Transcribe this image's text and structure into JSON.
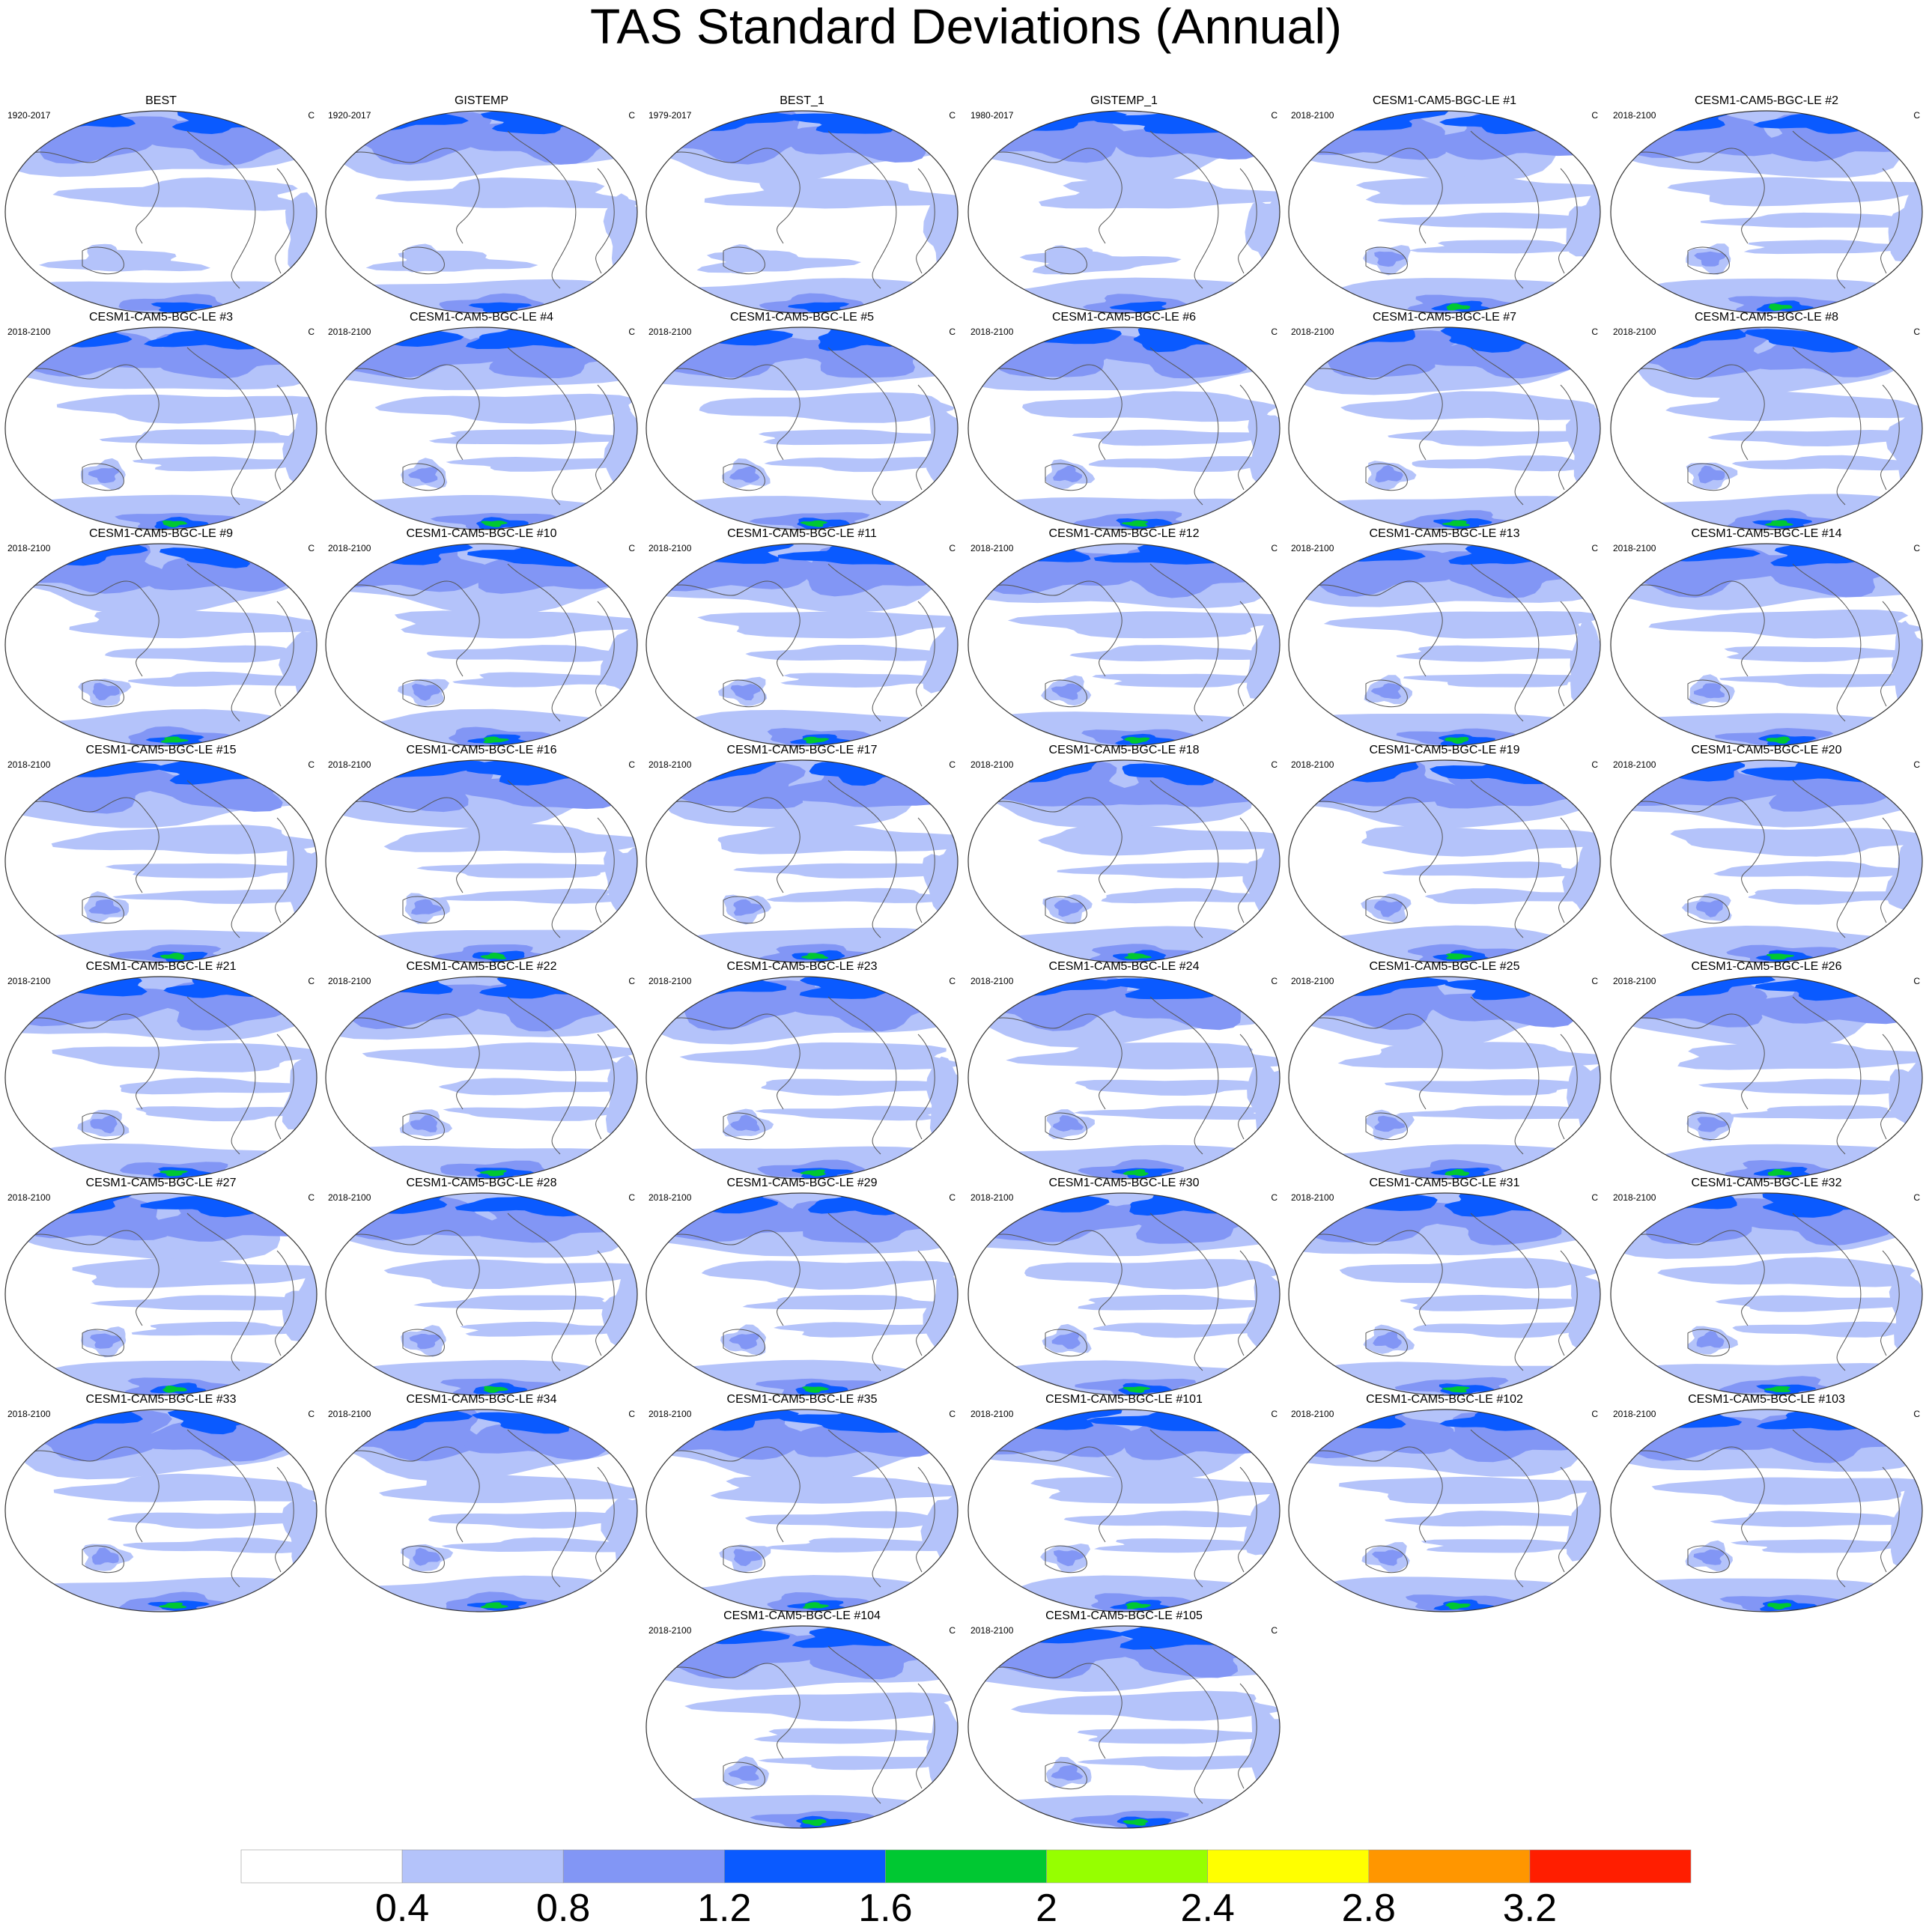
{
  "title": "TAS Standard Deviations (Annual)",
  "chart_data": {
    "type": "heatmap",
    "description_type": "panel grid of global contour maps",
    "unit_label": "C",
    "panels": [
      {
        "title": "BEST",
        "period": "1920-2017"
      },
      {
        "title": "GISTEMP",
        "period": "1920-2017"
      },
      {
        "title": "BEST_1",
        "period": "1979-2017"
      },
      {
        "title": "GISTEMP_1",
        "period": "1980-2017"
      },
      {
        "title": "CESM1-CAM5-BGC-LE #1",
        "period": "2018-2100"
      },
      {
        "title": "CESM1-CAM5-BGC-LE #2",
        "period": "2018-2100"
      },
      {
        "title": "CESM1-CAM5-BGC-LE #3",
        "period": "2018-2100"
      },
      {
        "title": "CESM1-CAM5-BGC-LE #4",
        "period": "2018-2100"
      },
      {
        "title": "CESM1-CAM5-BGC-LE #5",
        "period": "2018-2100"
      },
      {
        "title": "CESM1-CAM5-BGC-LE #6",
        "period": "2018-2100"
      },
      {
        "title": "CESM1-CAM5-BGC-LE #7",
        "period": "2018-2100"
      },
      {
        "title": "CESM1-CAM5-BGC-LE #8",
        "period": "2018-2100"
      },
      {
        "title": "CESM1-CAM5-BGC-LE #9",
        "period": "2018-2100"
      },
      {
        "title": "CESM1-CAM5-BGC-LE #10",
        "period": "2018-2100"
      },
      {
        "title": "CESM1-CAM5-BGC-LE #11",
        "period": "2018-2100"
      },
      {
        "title": "CESM1-CAM5-BGC-LE #12",
        "period": "2018-2100"
      },
      {
        "title": "CESM1-CAM5-BGC-LE #13",
        "period": "2018-2100"
      },
      {
        "title": "CESM1-CAM5-BGC-LE #14",
        "period": "2018-2100"
      },
      {
        "title": "CESM1-CAM5-BGC-LE #15",
        "period": "2018-2100"
      },
      {
        "title": "CESM1-CAM5-BGC-LE #16",
        "period": "2018-2100"
      },
      {
        "title": "CESM1-CAM5-BGC-LE #17",
        "period": "2018-2100"
      },
      {
        "title": "CESM1-CAM5-BGC-LE #18",
        "period": "2018-2100"
      },
      {
        "title": "CESM1-CAM5-BGC-LE #19",
        "period": "2018-2100"
      },
      {
        "title": "CESM1-CAM5-BGC-LE #20",
        "period": "2018-2100"
      },
      {
        "title": "CESM1-CAM5-BGC-LE #21",
        "period": "2018-2100"
      },
      {
        "title": "CESM1-CAM5-BGC-LE #22",
        "period": "2018-2100"
      },
      {
        "title": "CESM1-CAM5-BGC-LE #23",
        "period": "2018-2100"
      },
      {
        "title": "CESM1-CAM5-BGC-LE #24",
        "period": "2018-2100"
      },
      {
        "title": "CESM1-CAM5-BGC-LE #25",
        "period": "2018-2100"
      },
      {
        "title": "CESM1-CAM5-BGC-LE #26",
        "period": "2018-2100"
      },
      {
        "title": "CESM1-CAM5-BGC-LE #27",
        "period": "2018-2100"
      },
      {
        "title": "CESM1-CAM5-BGC-LE #28",
        "period": "2018-2100"
      },
      {
        "title": "CESM1-CAM5-BGC-LE #29",
        "period": "2018-2100"
      },
      {
        "title": "CESM1-CAM5-BGC-LE #30",
        "period": "2018-2100"
      },
      {
        "title": "CESM1-CAM5-BGC-LE #31",
        "period": "2018-2100"
      },
      {
        "title": "CESM1-CAM5-BGC-LE #32",
        "period": "2018-2100"
      },
      {
        "title": "CESM1-CAM5-BGC-LE #33",
        "period": "2018-2100"
      },
      {
        "title": "CESM1-CAM5-BGC-LE #34",
        "period": "2018-2100"
      },
      {
        "title": "CESM1-CAM5-BGC-LE #35",
        "period": "2018-2100"
      },
      {
        "title": "CESM1-CAM5-BGC-LE #101",
        "period": "2018-2100"
      },
      {
        "title": "CESM1-CAM5-BGC-LE #102",
        "period": "2018-2100"
      },
      {
        "title": "CESM1-CAM5-BGC-LE #103",
        "period": "2018-2100"
      },
      {
        "title": "CESM1-CAM5-BGC-LE #104",
        "period": "2018-2100"
      },
      {
        "title": "CESM1-CAM5-BGC-LE #105",
        "period": "2018-2100"
      }
    ],
    "colorbar": {
      "levels": [
        "0.4",
        "0.8",
        "1.2",
        "1.6",
        "2",
        "2.4",
        "2.8",
        "3.2"
      ],
      "colors": [
        "#ffffff",
        "#b4c3fa",
        "#8296f5",
        "#0a5aff",
        "#00c832",
        "#96ff00",
        "#ffff00",
        "#ff9600",
        "#ff1e00"
      ]
    }
  }
}
